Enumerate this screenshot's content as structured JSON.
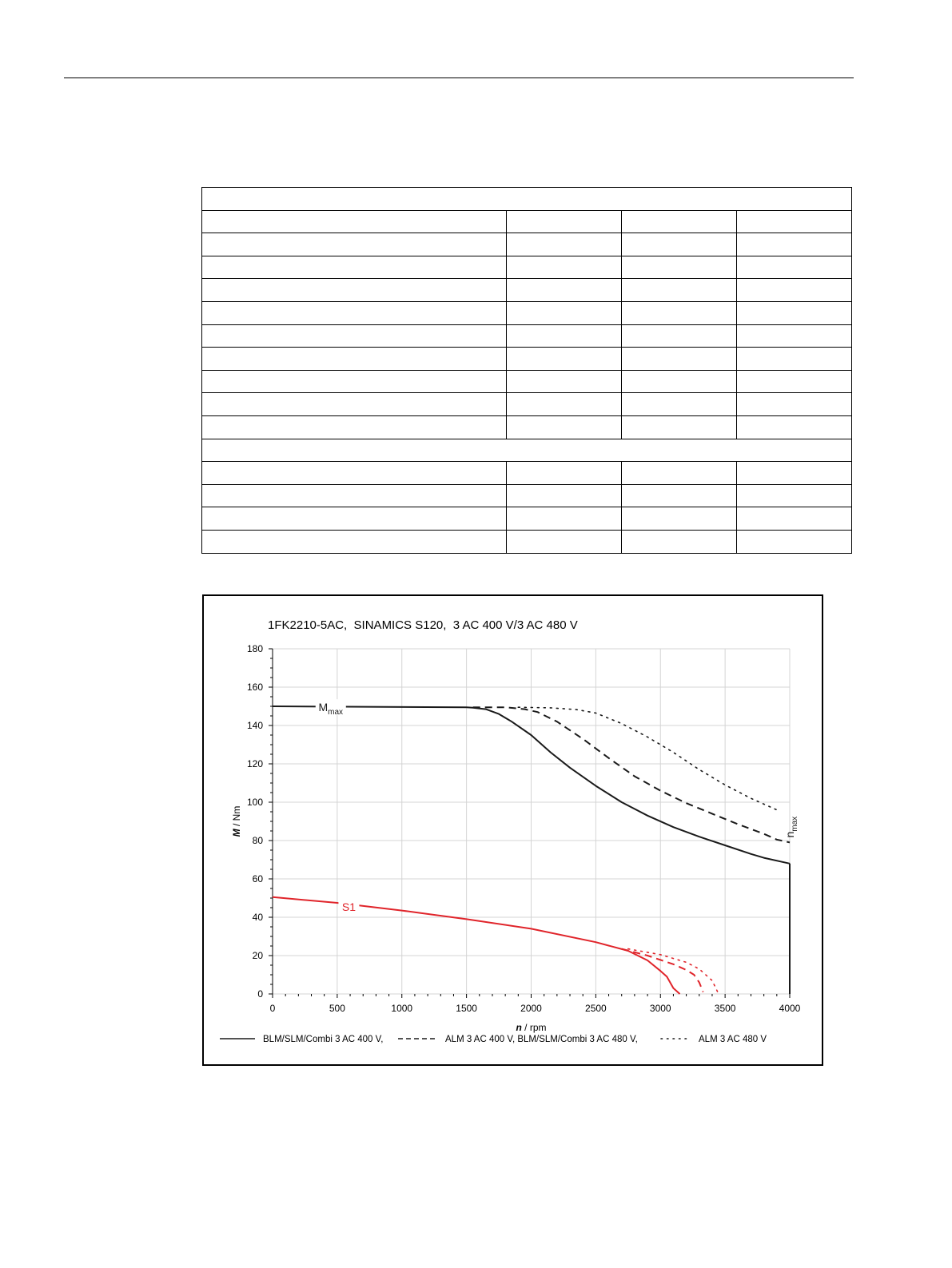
{
  "spec_table": {
    "rows": [
      {
        "kind": "span",
        "cells": [
          ""
        ]
      },
      {
        "kind": "split",
        "cells": [
          "",
          "",
          "",
          ""
        ]
      },
      {
        "kind": "split",
        "cells": [
          "",
          "",
          "",
          ""
        ]
      },
      {
        "kind": "split",
        "cells": [
          "",
          "",
          "",
          ""
        ]
      },
      {
        "kind": "split",
        "cells": [
          "",
          "",
          "",
          ""
        ]
      },
      {
        "kind": "split",
        "cells": [
          "",
          "",
          "",
          ""
        ]
      },
      {
        "kind": "split",
        "cells": [
          "",
          "",
          "",
          ""
        ]
      },
      {
        "kind": "split",
        "cells": [
          "",
          "",
          "",
          ""
        ]
      },
      {
        "kind": "split",
        "cells": [
          "",
          "",
          "",
          ""
        ]
      },
      {
        "kind": "split",
        "cells": [
          "",
          "",
          "",
          ""
        ]
      },
      {
        "kind": "split",
        "cells": [
          "",
          "",
          "",
          ""
        ]
      },
      {
        "kind": "span",
        "cells": [
          ""
        ]
      },
      {
        "kind": "split",
        "cells": [
          "",
          "",
          "",
          ""
        ]
      },
      {
        "kind": "split",
        "cells": [
          "",
          "",
          "",
          ""
        ]
      },
      {
        "kind": "split",
        "cells": [
          "",
          "",
          "",
          ""
        ]
      },
      {
        "kind": "split",
        "cells": [
          "",
          "",
          "",
          ""
        ]
      }
    ]
  },
  "chart_data": {
    "type": "line",
    "title": "1FK2210-5AC,  SINAMICS S120,  3 AC 400 V/3 AC 480 V",
    "xlabel_var": "n",
    "xlabel_unit": " / rpm",
    "ylabel_var": "M",
    "ylabel_unit": " / Nm",
    "xlim": [
      0,
      4000
    ],
    "ylim": [
      0,
      180
    ],
    "xticks": [
      0,
      500,
      1000,
      1500,
      2000,
      2500,
      3000,
      3500,
      4000
    ],
    "yticks": [
      0,
      20,
      40,
      60,
      80,
      100,
      120,
      140,
      160,
      180
    ],
    "grid": true,
    "legend_position": "bottom",
    "colors": {
      "black": "#1a1a1a",
      "red": "#e0242a",
      "grid": "#d4d4d4"
    },
    "annotations": [
      {
        "base": "M",
        "sub": "max",
        "x": 450,
        "y": 149.5,
        "color": "#1a1a1a"
      },
      {
        "base": "S1",
        "sub": "",
        "x": 590,
        "y": 45.5,
        "color": "#e0242a"
      },
      {
        "base": "n",
        "sub": "max",
        "x": 4000,
        "y": 87,
        "color": "#1a1a1a",
        "rotated": true
      }
    ],
    "series": [
      {
        "name": "BLM/SLM/Combi 3 AC 400 V,",
        "style": "solid",
        "color": "#1a1a1a",
        "legend": true,
        "x": [
          0,
          1500,
          1550,
          1650,
          1750,
          1850,
          2000,
          2150,
          2300,
          2500,
          2700,
          2900,
          3100,
          3300,
          3500,
          3700,
          3800,
          4000
        ],
        "y": [
          150,
          149.5,
          149.3,
          148.5,
          146,
          142,
          135,
          126,
          118,
          108.5,
          100,
          93,
          87,
          82,
          77.5,
          73,
          71,
          68
        ]
      },
      {
        "name": "ALM 3 AC 400 V, BLM/SLM/Combi 3 AC 480 V,",
        "style": "dashed",
        "color": "#1a1a1a",
        "legend": true,
        "x": [
          1550,
          1800,
          1950,
          2050,
          2200,
          2400,
          2600,
          2800,
          3000,
          3200,
          3400,
          3600,
          3800,
          3900,
          4000
        ],
        "y": [
          149.5,
          149.5,
          148.5,
          147,
          142,
          133,
          123,
          113.5,
          106,
          99.5,
          94,
          88.5,
          83.5,
          80.5,
          79
        ]
      },
      {
        "name": "ALM 3 AC 480 V",
        "style": "dotted",
        "color": "#1a1a1a",
        "legend": true,
        "x": [
          1900,
          2150,
          2350,
          2500,
          2700,
          2900,
          3100,
          3300,
          3500,
          3700,
          3900
        ],
        "y": [
          149.5,
          149.2,
          148.3,
          146.5,
          141,
          134,
          126,
          117,
          109,
          102,
          96
        ]
      },
      {
        "name": "",
        "style": "solid",
        "color": "#1a1a1a",
        "legend": false,
        "x": [
          4000,
          4000
        ],
        "y": [
          68,
          0
        ]
      },
      {
        "name": "",
        "style": "solid",
        "color": "#e0242a",
        "legend": false,
        "x": [
          0,
          500,
          1000,
          1500,
          2000,
          2500,
          2750,
          2900,
          3000,
          3050,
          3100,
          3150
        ],
        "y": [
          50.5,
          47.5,
          43.5,
          39,
          34,
          27,
          22.5,
          17.5,
          12,
          9,
          3,
          0
        ]
      },
      {
        "name": "",
        "style": "dashed",
        "color": "#e0242a",
        "legend": false,
        "x": [
          2700,
          2900,
          3100,
          3200,
          3260,
          3300,
          3330
        ],
        "y": [
          23.5,
          20,
          15.5,
          12.5,
          10,
          6,
          1
        ]
      },
      {
        "name": "",
        "style": "dotted",
        "color": "#e0242a",
        "legend": false,
        "x": [
          2750,
          3000,
          3200,
          3300,
          3400,
          3450
        ],
        "y": [
          23.5,
          20.5,
          16.5,
          13,
          7,
          0
        ]
      }
    ]
  }
}
